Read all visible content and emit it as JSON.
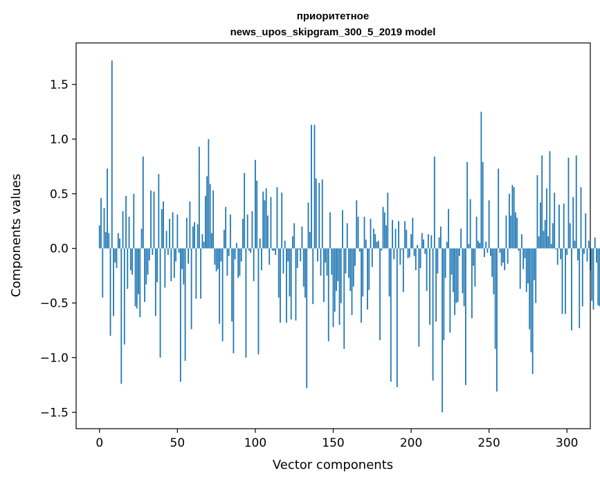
{
  "chart_data": {
    "type": "bar",
    "title_lines": [
      "приоритетное",
      "news_upos_skipgram_300_5_2019 model"
    ],
    "xlabel": "Vector components",
    "ylabel": "Components values",
    "xlim": [
      -15,
      315
    ],
    "ylim": [
      -1.65,
      1.88
    ],
    "xticks": [
      0,
      50,
      100,
      150,
      200,
      250,
      300
    ],
    "yticks": [
      -1.5,
      -1.0,
      -0.5,
      0.0,
      0.5,
      1.0,
      1.5
    ],
    "ytick_labels": [
      "−1.5",
      "−1.0",
      "−0.5",
      "0.0",
      "0.5",
      "1.0",
      "1.5"
    ],
    "bar_color": "#1f77b4",
    "values": [
      0.21,
      0.46,
      -0.45,
      0.37,
      0.15,
      0.73,
      0.14,
      -0.8,
      1.72,
      -0.62,
      -0.13,
      -0.18,
      0.14,
      0.09,
      -1.24,
      0.34,
      -0.88,
      0.48,
      -0.37,
      0.29,
      -0.2,
      -0.24,
      0.5,
      -0.53,
      -0.55,
      -0.42,
      -0.63,
      0.18,
      0.84,
      -0.49,
      -0.33,
      -0.24,
      -0.11,
      0.53,
      -0.06,
      0.52,
      -0.62,
      -0.31,
      0.68,
      -1.0,
      0.36,
      0.43,
      -0.36,
      0.16,
      -0.06,
      0.27,
      -0.3,
      0.33,
      -0.27,
      -0.12,
      0.31,
      -0.04,
      -1.22,
      -0.19,
      -0.33,
      -1.03,
      0.28,
      -0.14,
      0.43,
      -0.74,
      0.2,
      0.24,
      -0.46,
      0.22,
      0.93,
      -0.46,
      0.13,
      0.06,
      0.48,
      0.66,
      1.0,
      0.59,
      0.14,
      0.53,
      -0.15,
      -0.21,
      -0.19,
      -0.69,
      -0.12,
      -0.85,
      0.17,
      0.38,
      -0.25,
      -0.07,
      0.31,
      -0.67,
      -0.96,
      -0.1,
      0.05,
      -0.27,
      -0.25,
      -0.12,
      0.27,
      0.69,
      -1.0,
      0.31,
      -0.02,
      -0.04,
      0.34,
      -0.3,
      0.81,
      0.62,
      -0.97,
      0.09,
      -0.2,
      0.52,
      0.44,
      0.55,
      0.3,
      -0.15,
      0.47,
      -0.02,
      -0.02,
      -0.06,
      0.56,
      -0.45,
      -0.68,
      0.51,
      -0.23,
      0.07,
      -0.68,
      -0.12,
      -0.44,
      -0.65,
      0.11,
      0.23,
      -0.66,
      -0.18,
      -0.01,
      -0.12,
      0.2,
      -0.35,
      -0.45,
      -1.28,
      0.42,
      0.15,
      1.13,
      -0.51,
      1.13,
      0.64,
      -0.12,
      0.6,
      -0.25,
      0.63,
      -0.49,
      -0.13,
      -0.25,
      -0.85,
      0.33,
      -0.24,
      -0.72,
      -0.58,
      -0.39,
      -0.3,
      -0.7,
      -0.5,
      0.35,
      -0.92,
      -0.23,
      0.23,
      -0.27,
      -0.39,
      -0.61,
      -0.35,
      -0.16,
      0.44,
      0.29,
      -0.03,
      -0.68,
      -0.44,
      0.29,
      0.08,
      -0.56,
      -0.38,
      0.27,
      -0.17,
      0.18,
      0.13,
      0.06,
      0.07,
      -0.84,
      -0.02,
      0.38,
      0.33,
      0.21,
      0.51,
      -0.44,
      -1.22,
      0.26,
      -0.1,
      0.18,
      -1.27,
      0.25,
      -0.15,
      -0.01,
      -0.4,
      0.25,
      0.17,
      -0.09,
      -0.08,
      0.13,
      0.28,
      -0.07,
      -0.2,
      0.03,
      -0.9,
      -0.18,
      0.14,
      0.08,
      -0.05,
      -0.39,
      0.13,
      -0.7,
      0.12,
      -1.21,
      0.84,
      -0.67,
      -0.23,
      0.1,
      0.2,
      -1.5,
      -0.84,
      -0.27,
      0.06,
      0.36,
      -0.77,
      -0.24,
      -0.4,
      -0.61,
      -0.5,
      -0.49,
      -0.07,
      0.18,
      -0.41,
      -0.53,
      -1.25,
      0.79,
      0.04,
      0.45,
      -0.64,
      -0.16,
      -0.35,
      0.29,
      0.07,
      0.05,
      1.25,
      0.79,
      -0.08,
      0.06,
      -0.04,
      0.44,
      -0.07,
      -0.26,
      -0.42,
      -0.92,
      -1.31,
      0.73,
      -0.04,
      -0.16,
      -0.13,
      -0.2,
      0.3,
      -0.14,
      0.5,
      0.3,
      0.58,
      0.56,
      0.33,
      0.28,
      -0.02,
      -0.37,
      0.13,
      -0.19,
      -0.09,
      -0.4,
      -0.32,
      -0.74,
      -0.95,
      -1.15,
      -0.29,
      -0.5,
      0.67,
      0.11,
      0.42,
      0.85,
      0.16,
      0.26,
      0.55,
      0.11,
      0.89,
      0.04,
      0.23,
      0.51,
      -0.01,
      -0.15,
      0.4,
      -0.1,
      -0.6,
      0.41,
      -0.6,
      -0.06,
      0.83,
      0.23,
      -0.75,
      0.47,
      0.07,
      0.85,
      -0.11,
      -0.73,
      0.56,
      -0.53,
      -0.05,
      0.32,
      -0.12,
      0.07,
      -0.2,
      -0.48,
      -0.56,
      0.1,
      -0.13,
      -0.52,
      -0.53
    ]
  }
}
